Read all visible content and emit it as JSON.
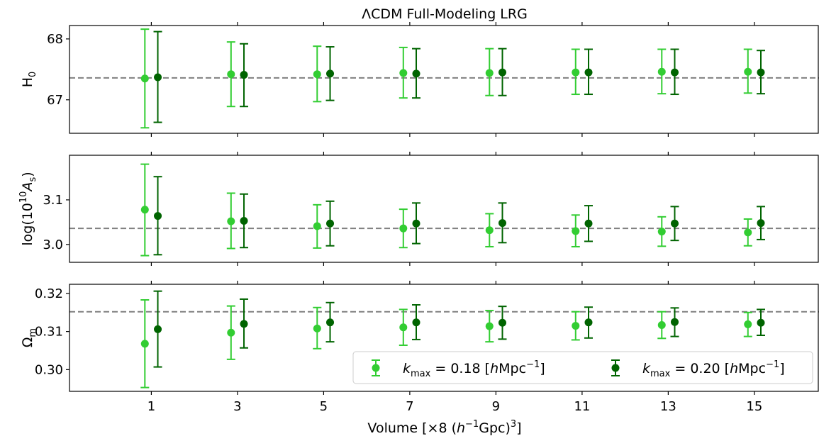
{
  "chart_data": {
    "type": "scatter",
    "title": "ΛCDM Full-Modeling LRG",
    "xlabel_parts": [
      "Volume [×8 (",
      "h",
      "−1",
      "Gpc)",
      "3",
      "]"
    ],
    "x_ticks": [
      1,
      3,
      5,
      7,
      9,
      11,
      13,
      15
    ],
    "xlim": [
      -0.9,
      16.5
    ],
    "colors": {
      "k018": "#32cd32",
      "k020": "#006400",
      "reference": "#808080"
    },
    "legend": {
      "placement": "bottom-right",
      "entries": [
        {
          "series": "k018",
          "sym": "k",
          "sub": "max",
          "value": " = 0.18 [",
          "unit_h": "h",
          "unit": "Mpc",
          "exp": "−1",
          "close": "]"
        },
        {
          "series": "k020",
          "sym": "k",
          "sub": "max",
          "value": " = 0.20 [",
          "unit_h": "h",
          "unit": "Mpc",
          "exp": "−1",
          "close": "]"
        }
      ]
    },
    "panels": [
      {
        "id": "H0",
        "ylabel_parts": [
          "H",
          "0",
          "",
          ""
        ],
        "ylim": [
          66.45,
          68.22
        ],
        "yticks": [
          "67",
          "68"
        ],
        "reference": 67.36,
        "series": [
          {
            "key": "k018",
            "x": [
              0.85,
              2.85,
              4.85,
              6.85,
              8.85,
              10.85,
              12.85,
              14.85
            ],
            "y": [
              67.35,
              67.42,
              67.42,
              67.44,
              67.44,
              67.45,
              67.46,
              67.46
            ],
            "lo": [
              66.54,
              66.89,
              66.97,
              67.03,
              67.07,
              67.09,
              67.1,
              67.11
            ],
            "hi": [
              68.16,
              67.95,
              67.88,
              67.86,
              67.84,
              67.83,
              67.83,
              67.83
            ]
          },
          {
            "key": "k020",
            "x": [
              1.15,
              3.15,
              5.15,
              7.15,
              9.15,
              11.15,
              13.15,
              15.15
            ],
            "y": [
              67.37,
              67.41,
              67.43,
              67.43,
              67.45,
              67.45,
              67.45,
              67.45
            ],
            "lo": [
              66.63,
              66.89,
              66.99,
              67.03,
              67.07,
              67.09,
              67.09,
              67.1
            ],
            "hi": [
              68.12,
              67.92,
              67.87,
              67.84,
              67.84,
              67.83,
              67.83,
              67.81
            ]
          }
        ]
      },
      {
        "id": "As",
        "ylabel_parts": [
          "log(10",
          "10",
          "A",
          "s",
          ")"
        ],
        "ylim": [
          2.96,
          3.2
        ],
        "yticks": [
          "3.0",
          "3.1"
        ],
        "reference": 3.036,
        "series": [
          {
            "key": "k018",
            "x": [
              0.85,
              2.85,
              4.85,
              6.85,
              8.85,
              10.85,
              12.85,
              14.85
            ],
            "y": [
              3.078,
              3.052,
              3.041,
              3.036,
              3.032,
              3.03,
              3.029,
              3.027
            ],
            "lo": [
              2.975,
              2.991,
              2.992,
              2.993,
              2.995,
              2.995,
              2.996,
              2.997
            ],
            "hi": [
              3.18,
              3.115,
              3.089,
              3.079,
              3.069,
              3.066,
              3.062,
              3.057
            ]
          },
          {
            "key": "k020",
            "x": [
              1.15,
              3.15,
              5.15,
              7.15,
              9.15,
              11.15,
              13.15,
              15.15
            ],
            "y": [
              3.064,
              3.053,
              3.047,
              3.047,
              3.048,
              3.047,
              3.047,
              3.048
            ],
            "lo": [
              2.977,
              2.993,
              2.997,
              3.002,
              3.004,
              3.007,
              3.009,
              3.011
            ],
            "hi": [
              3.152,
              3.113,
              3.097,
              3.093,
              3.093,
              3.087,
              3.085,
              3.085
            ]
          }
        ]
      },
      {
        "id": "Om",
        "ylabel_parts": [
          "Ω",
          "m"
        ],
        "ylim": [
          0.2943,
          0.3224
        ],
        "yticks": [
          "0.30",
          "0.31",
          "0.32"
        ],
        "reference": 0.3152,
        "series": [
          {
            "key": "k018",
            "x": [
              0.85,
              2.85,
              4.85,
              6.85,
              8.85,
              10.85,
              12.85,
              14.85
            ],
            "y": [
              0.3068,
              0.3097,
              0.3108,
              0.3111,
              0.3114,
              0.3115,
              0.3117,
              0.3119
            ],
            "lo": [
              0.2953,
              0.3027,
              0.3055,
              0.3064,
              0.3073,
              0.3078,
              0.3082,
              0.3087
            ],
            "hi": [
              0.3183,
              0.3167,
              0.3163,
              0.3158,
              0.3155,
              0.3152,
              0.3152,
              0.315
            ]
          },
          {
            "key": "k020",
            "x": [
              1.15,
              3.15,
              5.15,
              7.15,
              9.15,
              11.15,
              13.15,
              15.15
            ],
            "y": [
              0.3106,
              0.312,
              0.3124,
              0.3124,
              0.3123,
              0.3124,
              0.3125,
              0.3123
            ],
            "lo": [
              0.3007,
              0.3057,
              0.3073,
              0.3079,
              0.308,
              0.3083,
              0.3087,
              0.309
            ],
            "hi": [
              0.3206,
              0.3185,
              0.3176,
              0.317,
              0.3166,
              0.3164,
              0.3162,
              0.3158
            ]
          }
        ]
      }
    ]
  }
}
